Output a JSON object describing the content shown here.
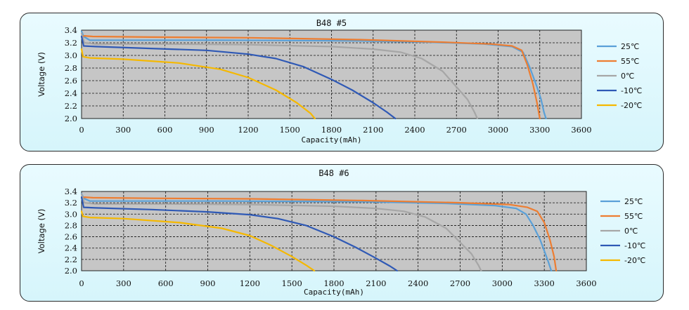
{
  "chart_data": [
    {
      "type": "line",
      "title": "B48 #5",
      "xlabel": "Capacity(mAh)",
      "ylabel": "Voltage (V)",
      "xlim": [
        0,
        3600
      ],
      "ylim": [
        2.0,
        3.4
      ],
      "xticks": [
        "0",
        "300",
        "600",
        "900",
        "1200",
        "1500",
        "1800",
        "2100",
        "2400",
        "2700",
        "3000",
        "3300",
        "3600"
      ],
      "yticks": [
        "2.0",
        "2.2",
        "2.4",
        "2.6",
        "2.8",
        "3.0",
        "3.2",
        "3.4"
      ],
      "grid": true,
      "legend_position": "right",
      "series": [
        {
          "name": "25℃",
          "color": "#5aa0d8",
          "x": [
            0,
            15,
            60,
            300,
            1000,
            2000,
            2500,
            2900,
            3100,
            3180,
            3230,
            3280,
            3310,
            3330,
            3345
          ],
          "y": [
            3.38,
            3.3,
            3.24,
            3.24,
            3.24,
            3.23,
            3.21,
            3.18,
            3.14,
            3.05,
            2.8,
            2.5,
            2.3,
            2.1,
            2.0
          ]
        },
        {
          "name": "55℃",
          "color": "#ed7d31",
          "x": [
            0,
            20,
            80,
            500,
            1200,
            2000,
            2600,
            2950,
            3100,
            3170,
            3210,
            3250,
            3280,
            3300
          ],
          "y": [
            3.29,
            3.31,
            3.3,
            3.29,
            3.28,
            3.25,
            3.21,
            3.18,
            3.15,
            3.08,
            2.85,
            2.55,
            2.25,
            2.0
          ]
        },
        {
          "name": "0℃",
          "color": "#a6a6a6",
          "x": [
            0,
            20,
            100,
            600,
            1200,
            1800,
            2100,
            2300,
            2450,
            2600,
            2700,
            2780,
            2830,
            2850
          ],
          "y": [
            3.35,
            3.2,
            3.18,
            3.18,
            3.17,
            3.14,
            3.1,
            3.05,
            2.95,
            2.75,
            2.5,
            2.3,
            2.1,
            2.0
          ]
        },
        {
          "name": "-10℃",
          "color": "#2f59b5",
          "x": [
            0,
            15,
            100,
            500,
            900,
            1200,
            1400,
            1600,
            1800,
            1950,
            2100,
            2200,
            2260
          ],
          "y": [
            3.3,
            3.15,
            3.14,
            3.11,
            3.08,
            3.02,
            2.95,
            2.82,
            2.62,
            2.45,
            2.25,
            2.1,
            2.0
          ]
        },
        {
          "name": "-20℃",
          "color": "#f5b800",
          "x": [
            0,
            10,
            60,
            300,
            700,
            1000,
            1200,
            1400,
            1550,
            1650,
            1680
          ],
          "y": [
            3.1,
            2.98,
            2.96,
            2.94,
            2.88,
            2.78,
            2.65,
            2.45,
            2.25,
            2.08,
            2.0
          ]
        }
      ]
    },
    {
      "type": "line",
      "title": "B48 #6",
      "xlabel": "Capacity(mAh)",
      "ylabel": "Voltage (V)",
      "xlim": [
        0,
        3600
      ],
      "ylim": [
        2.0,
        3.4
      ],
      "xticks": [
        "0",
        "300",
        "600",
        "900",
        "1200",
        "1500",
        "1800",
        "2100",
        "2400",
        "2700",
        "3000",
        "3300",
        "3600"
      ],
      "yticks": [
        "2.0",
        "2.2",
        "2.4",
        "2.6",
        "2.8",
        "3.0",
        "3.2",
        "3.4"
      ],
      "grid": true,
      "legend_position": "right",
      "series": [
        {
          "name": "25℃",
          "color": "#5aa0d8",
          "x": [
            0,
            15,
            60,
            300,
            1000,
            2000,
            2600,
            2950,
            3100,
            3170,
            3220,
            3270,
            3300,
            3330,
            3350
          ],
          "y": [
            3.36,
            3.28,
            3.23,
            3.23,
            3.23,
            3.22,
            3.19,
            3.15,
            3.1,
            3.0,
            2.8,
            2.55,
            2.35,
            2.15,
            2.0
          ]
        },
        {
          "name": "55℃",
          "color": "#ed7d31",
          "x": [
            0,
            20,
            80,
            500,
            1200,
            2000,
            2700,
            3050,
            3180,
            3250,
            3300,
            3340,
            3370,
            3385
          ],
          "y": [
            3.28,
            3.3,
            3.29,
            3.28,
            3.27,
            3.24,
            3.2,
            3.17,
            3.12,
            3.05,
            2.85,
            2.55,
            2.25,
            2.0
          ]
        },
        {
          "name": "0℃",
          "color": "#a6a6a6",
          "x": [
            0,
            20,
            100,
            600,
            1200,
            1800,
            2100,
            2300,
            2450,
            2600,
            2700,
            2780,
            2830,
            2850
          ],
          "y": [
            3.35,
            3.2,
            3.18,
            3.18,
            3.17,
            3.14,
            3.1,
            3.05,
            2.95,
            2.75,
            2.5,
            2.3,
            2.1,
            2.0
          ]
        },
        {
          "name": "-10℃",
          "color": "#2f59b5",
          "x": [
            0,
            15,
            100,
            500,
            900,
            1200,
            1400,
            1600,
            1800,
            1950,
            2100,
            2200,
            2250
          ],
          "y": [
            3.3,
            3.12,
            3.11,
            3.08,
            3.04,
            2.99,
            2.92,
            2.8,
            2.6,
            2.42,
            2.22,
            2.08,
            2.0
          ]
        },
        {
          "name": "-20℃",
          "color": "#f5b800",
          "x": [
            0,
            10,
            60,
            300,
            700,
            1000,
            1200,
            1350,
            1500,
            1600,
            1660
          ],
          "y": [
            3.05,
            2.96,
            2.94,
            2.92,
            2.85,
            2.75,
            2.62,
            2.45,
            2.25,
            2.1,
            2.0
          ]
        }
      ]
    }
  ]
}
